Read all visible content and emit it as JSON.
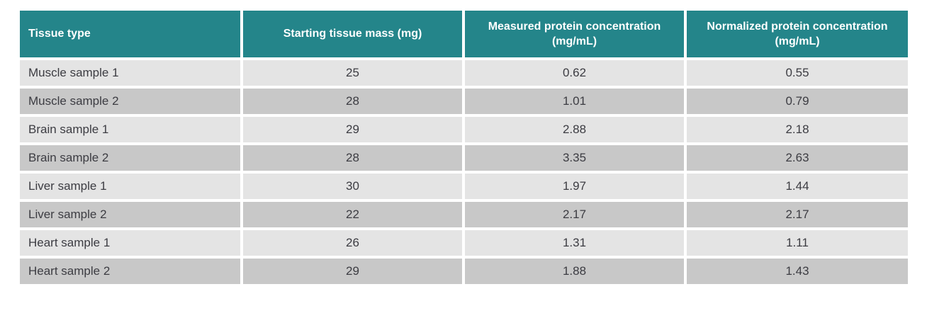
{
  "chart_data": {
    "type": "table",
    "title": "",
    "columns": [
      "Tissue type",
      "Starting tissue mass (mg)",
      "Measured protein concentration (mg/mL)",
      "Normalized protein concentration (mg/mL)"
    ],
    "rows": [
      [
        "Muscle sample 1",
        "25",
        "0.62",
        "0.55"
      ],
      [
        "Muscle sample 2",
        "28",
        "1.01",
        "0.79"
      ],
      [
        "Brain sample 1",
        "29",
        "2.88",
        "2.18"
      ],
      [
        "Brain sample 2",
        "28",
        "3.35",
        "2.63"
      ],
      [
        "Liver sample 1",
        "30",
        "1.97",
        "1.44"
      ],
      [
        "Liver sample 2",
        "22",
        "2.17",
        "2.17"
      ],
      [
        "Heart sample 1",
        "26",
        "1.31",
        "1.11"
      ],
      [
        "Heart sample 2",
        "29",
        "1.88",
        "1.43"
      ]
    ],
    "layout_hints": {
      "first_column_align": "left",
      "other_columns_align": "center",
      "row_striping": "alternating light/dark gray",
      "grid": "white gutters between cells"
    }
  },
  "colors": {
    "header_bg": "#24858a",
    "header_text": "#ffffff",
    "row_light": "#e4e4e4",
    "row_dark": "#c8c8c8",
    "body_text": "#3c3c42",
    "page_bg": "#ffffff"
  }
}
